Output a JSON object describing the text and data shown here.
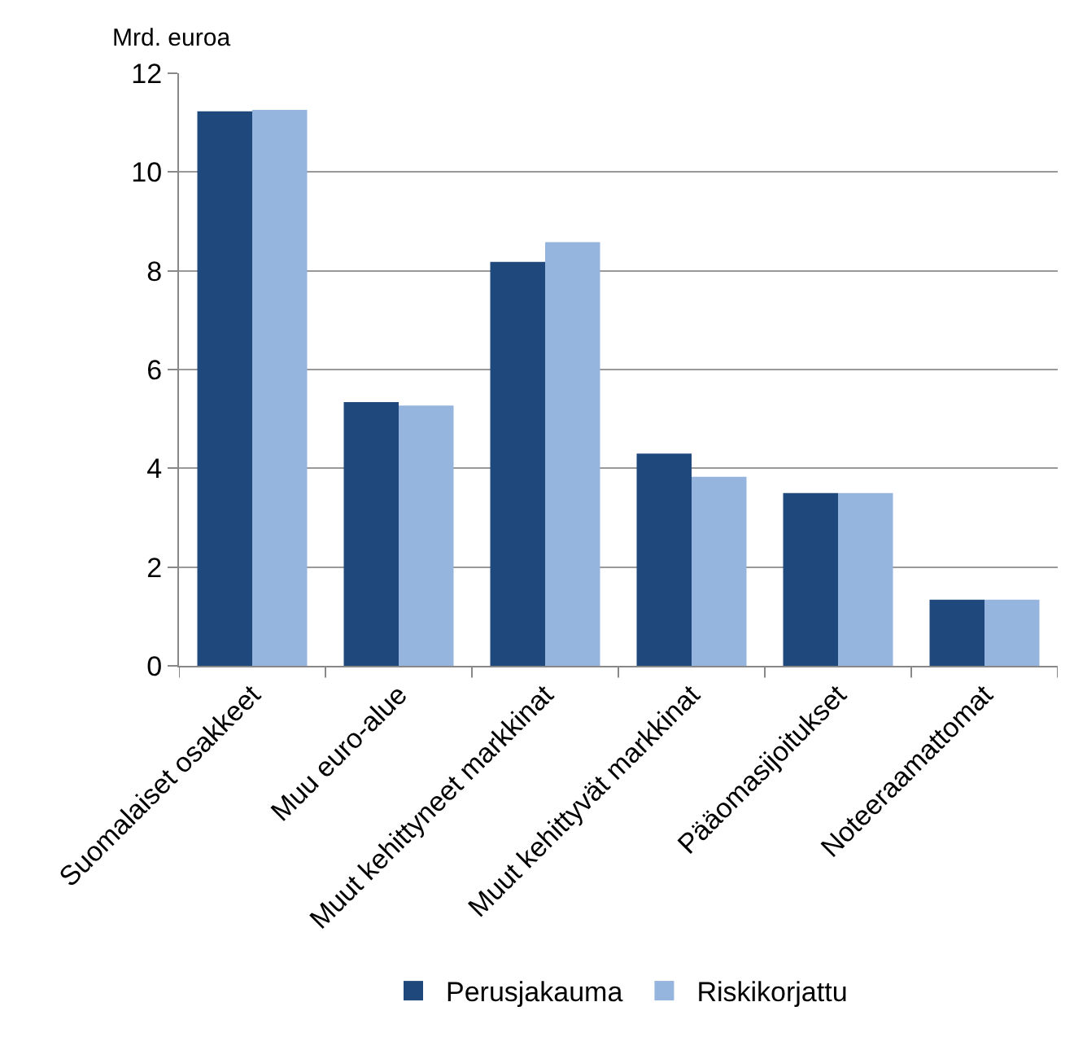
{
  "chart_data": {
    "type": "bar",
    "ylabel": "Mrd. euroa",
    "categories": [
      "Suomalaiset osakkeet",
      "Muu euro-alue",
      "Muut kehittyneet markkinat",
      "Muut kehittyvät markkinat",
      "Pääomasijoitukset",
      "Noteeraamattomat"
    ],
    "series": [
      {
        "name": "Perusjakauma",
        "color": "#1f487c",
        "values": [
          11.23,
          5.34,
          8.18,
          4.3,
          3.5,
          1.34
        ]
      },
      {
        "name": "Riskikorjattu",
        "color": "#95b4de",
        "values": [
          11.26,
          5.27,
          8.58,
          3.83,
          3.5,
          1.34
        ]
      }
    ],
    "ylim": [
      0,
      12
    ],
    "yticks": [
      0,
      2,
      4,
      6,
      8,
      10,
      12
    ],
    "grid": "y",
    "legend": "bottom"
  }
}
